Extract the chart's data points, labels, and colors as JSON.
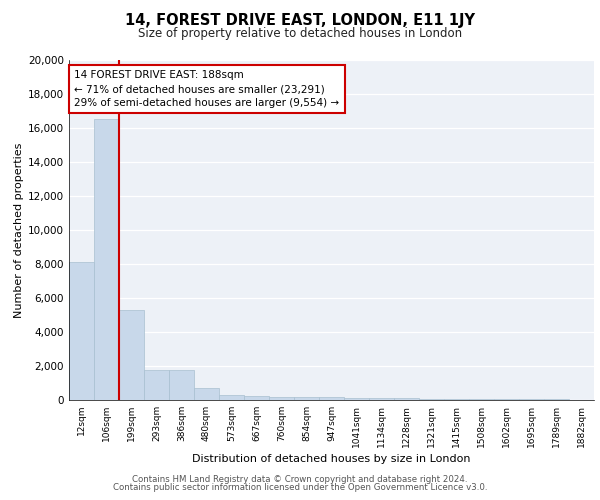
{
  "title": "14, FOREST DRIVE EAST, LONDON, E11 1JY",
  "subtitle": "Size of property relative to detached houses in London",
  "xlabel": "Distribution of detached houses by size in London",
  "ylabel": "Number of detached properties",
  "bin_labels": [
    "12sqm",
    "106sqm",
    "199sqm",
    "293sqm",
    "386sqm",
    "480sqm",
    "573sqm",
    "667sqm",
    "760sqm",
    "854sqm",
    "947sqm",
    "1041sqm",
    "1134sqm",
    "1228sqm",
    "1321sqm",
    "1415sqm",
    "1508sqm",
    "1602sqm",
    "1695sqm",
    "1789sqm",
    "1882sqm"
  ],
  "bar_heights": [
    8100,
    16500,
    5300,
    1750,
    1750,
    700,
    320,
    230,
    200,
    175,
    150,
    130,
    110,
    95,
    80,
    65,
    55,
    45,
    38,
    30,
    25
  ],
  "bar_color": "#c8d8ea",
  "bar_edge_color": "#a8bfd0",
  "annotation_line1": "14 FOREST DRIVE EAST: 188sqm",
  "annotation_line2": "← 71% of detached houses are smaller (23,291)",
  "annotation_line3": "29% of semi-detached houses are larger (9,554) →",
  "annotation_box_edge": "#cc0000",
  "vline_color": "#cc0000",
  "vline_x": 1.5,
  "ylim": [
    0,
    20000
  ],
  "yticks": [
    0,
    2000,
    4000,
    6000,
    8000,
    10000,
    12000,
    14000,
    16000,
    18000,
    20000
  ],
  "background_color": "#edf1f7",
  "footer_line1": "Contains HM Land Registry data © Crown copyright and database right 2024.",
  "footer_line2": "Contains public sector information licensed under the Open Government Licence v3.0."
}
